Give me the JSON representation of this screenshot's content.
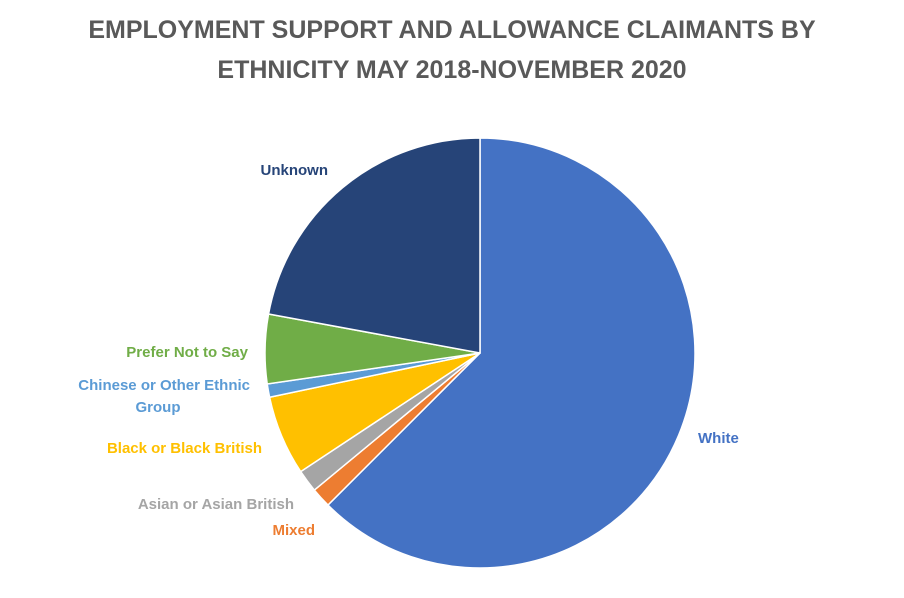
{
  "chart_data": {
    "type": "pie",
    "title_lines": [
      "EMPLOYMENT SUPPORT AND ALLOWANCE CLAIMANTS  BY",
      "ETHNICITY MAY 2018-NOVEMBER 2020"
    ],
    "start_angle_deg": 0,
    "direction": "clockwise",
    "slices": [
      {
        "label": "White",
        "value": 62.5,
        "color": "#4472C4",
        "label_color": "#4472C4"
      },
      {
        "label": "Mixed",
        "value": 1.5,
        "color": "#ED7D31",
        "label_color": "#ED7D31"
      },
      {
        "label": "Asian or Asian British",
        "value": 1.7,
        "color": "#A5A5A5",
        "label_color": "#A5A5A5"
      },
      {
        "label": "Black or Black British",
        "value": 6.0,
        "color": "#FFC000",
        "label_color": "#FFC000"
      },
      {
        "label": "Chinese or Other Ethnic Group",
        "label_lines": [
          "Chinese or Other Ethnic",
          "Group"
        ],
        "value": 1.0,
        "color": "#5B9BD5",
        "label_color": "#5B9BD5"
      },
      {
        "label": "Prefer Not to Say",
        "value": 5.2,
        "color": "#70AD47",
        "label_color": "#70AD47"
      },
      {
        "label": "Unknown",
        "value": 22.1,
        "color": "#264478",
        "label_color": "#264478"
      }
    ]
  }
}
